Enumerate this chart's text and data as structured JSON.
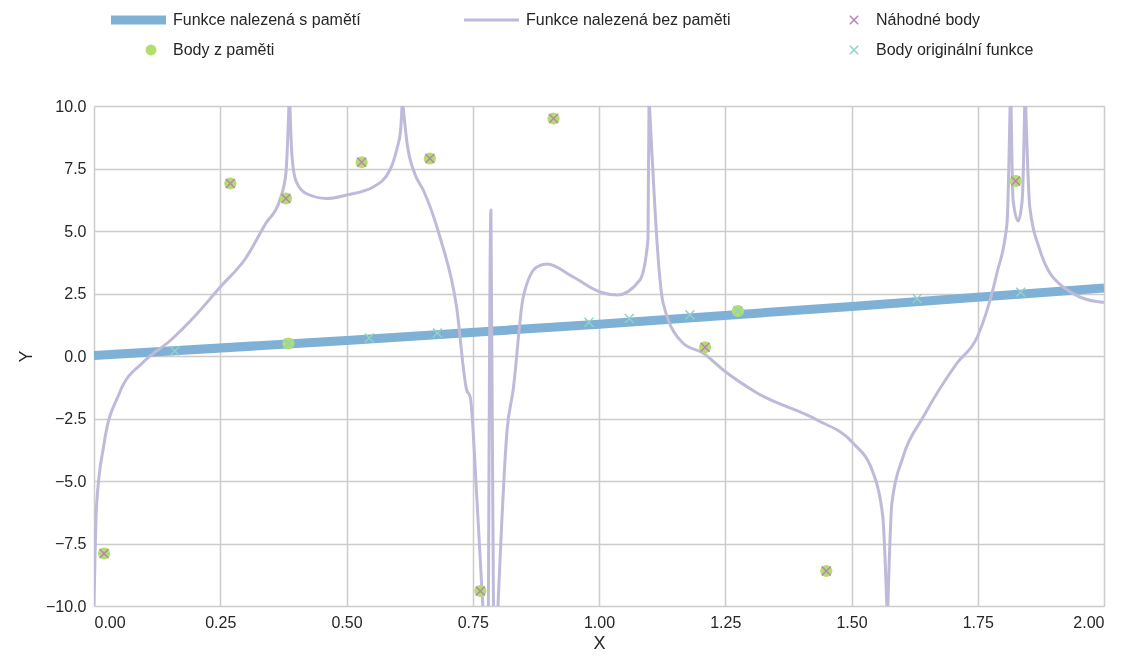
{
  "chart_data": {
    "type": "line",
    "xlabel": "X",
    "ylabel": "Y",
    "xlim": [
      0,
      2
    ],
    "ylim": [
      -10,
      10
    ],
    "xticks": [
      {
        "value": 0,
        "label": "0.00"
      },
      {
        "value": 0.25,
        "label": "0.25"
      },
      {
        "value": 0.5,
        "label": "0.50"
      },
      {
        "value": 0.75,
        "label": "0.75"
      },
      {
        "value": 1,
        "label": "1.00"
      },
      {
        "value": 1.25,
        "label": "1.25"
      },
      {
        "value": 1.5,
        "label": "1.50"
      },
      {
        "value": 1.75,
        "label": "1.75"
      },
      {
        "value": 2,
        "label": "2.00"
      }
    ],
    "yticks": [
      {
        "value": -10,
        "label": "−10.0"
      },
      {
        "value": -7.5,
        "label": "−7.5"
      },
      {
        "value": -5,
        "label": "−5.0"
      },
      {
        "value": -2.5,
        "label": "−2.5"
      },
      {
        "value": 0,
        "label": "0.0"
      },
      {
        "value": 2.5,
        "label": "2.5"
      },
      {
        "value": 5,
        "label": "5.0"
      },
      {
        "value": 7.5,
        "label": "7.5"
      },
      {
        "value": 10,
        "label": "10.0"
      }
    ],
    "grid": true,
    "legend": "top",
    "series": [
      {
        "name": "Funkce nalezená s pamětí",
        "color": "#7fb0d5",
        "x": [
          0,
          0.5,
          1.0,
          1.5,
          2.0
        ],
        "values": [
          0.02,
          0.62,
          1.27,
          1.98,
          2.72
        ]
      },
      {
        "name": "Funkce nalezená bez paměti",
        "color": "#bebada",
        "x": [
          0.0,
          0.005,
          0.02,
          0.05,
          0.1,
          0.15,
          0.2,
          0.25,
          0.3,
          0.34,
          0.368,
          0.38,
          0.386,
          0.3865,
          0.388,
          0.392,
          0.4,
          0.42,
          0.461,
          0.5,
          0.553,
          0.586,
          0.6,
          0.607,
          0.61,
          0.6105,
          0.612,
          0.62,
          0.635,
          0.652,
          0.685,
          0.718,
          0.738,
          0.745,
          0.758,
          0.77,
          0.775,
          0.781,
          0.786,
          0.791,
          0.795,
          0.8,
          0.818,
          0.83,
          0.85,
          0.877,
          0.897,
          0.949,
          1.002,
          1.036,
          1.081,
          1.097,
          1.099,
          1.0995,
          1.1,
          1.127,
          1.166,
          1.206,
          1.246,
          1.313,
          1.432,
          1.503,
          1.543,
          1.562,
          1.57,
          1.5705,
          1.572,
          1.58,
          1.602,
          1.642,
          1.709,
          1.749,
          1.788,
          1.808,
          1.812,
          1.814,
          1.8145,
          1.816,
          1.82,
          1.83,
          1.838,
          1.843,
          1.8435,
          1.845,
          1.853,
          1.873,
          1.919,
          1.992,
          2.0
        ],
        "values": [
          -10,
          -6,
          -3.5,
          -1.5,
          -0.2,
          0.6,
          1.6,
          2.76,
          3.9,
          5.3,
          6.24,
          7.3,
          10,
          null,
          10,
          8.0,
          7.0,
          6.5,
          6.3,
          6.44,
          6.76,
          7.44,
          8.3,
          9.0,
          10,
          null,
          10,
          8.5,
          7.3,
          6.64,
          4.76,
          1.96,
          -1.36,
          -1.64,
          -5.64,
          -10,
          null,
          -10,
          5.84,
          -10,
          null,
          -10,
          -2.96,
          -1.36,
          2.36,
          3.56,
          3.68,
          3.16,
          2.56,
          2.44,
          3.04,
          4.64,
          10,
          null,
          10,
          2.12,
          0.52,
          0.12,
          -0.56,
          -1.48,
          -2.56,
          -3.48,
          -4.68,
          -6.44,
          -10,
          null,
          -10,
          -5.88,
          -4.04,
          -2.44,
          -0.28,
          0.76,
          3.32,
          5.32,
          7.96,
          10,
          null,
          10,
          6.24,
          5.4,
          6.24,
          10,
          null,
          10,
          5.96,
          4.24,
          2.76,
          2.16,
          2.15
        ]
      },
      {
        "name": "Body z paměti",
        "type": "scatter",
        "marker": "circle",
        "color": "#b3de69",
        "x": [
          0.02,
          0.27,
          0.38,
          0.385,
          0.53,
          0.665,
          0.765,
          0.91,
          1.21,
          1.275,
          1.45,
          1.825
        ],
        "values": [
          -7.9,
          6.9,
          6.3,
          0.5,
          7.75,
          7.9,
          -9.4,
          9.5,
          0.35,
          1.8,
          -8.6,
          7.0
        ]
      },
      {
        "name": "Náhodné body",
        "type": "scatter",
        "marker": "cross",
        "color": "#bc80bd",
        "x": [
          0.02,
          0.27,
          0.38,
          0.53,
          0.665,
          0.765,
          0.91,
          1.21,
          1.45,
          1.825
        ],
        "values": [
          -7.9,
          6.9,
          6.3,
          7.75,
          7.9,
          -9.4,
          9.5,
          0.35,
          -8.6,
          7.0
        ]
      },
      {
        "name": "Body originální funkce",
        "type": "scatter",
        "marker": "cross",
        "color": "#8dd3c7",
        "x": [
          0.16,
          0.385,
          0.545,
          0.68,
          0.98,
          1.06,
          1.18,
          1.275,
          1.63,
          1.835
        ],
        "values": [
          0.2,
          0.5,
          0.72,
          0.92,
          1.35,
          1.5,
          1.65,
          1.8,
          2.3,
          2.55
        ]
      }
    ]
  }
}
